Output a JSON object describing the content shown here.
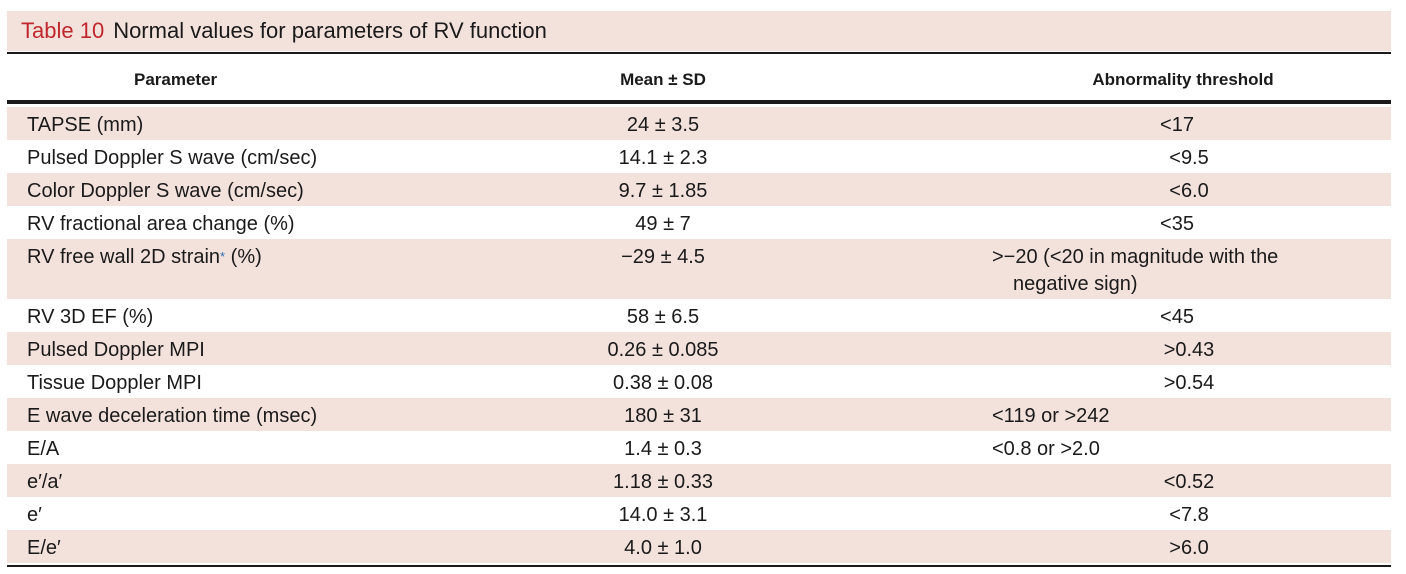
{
  "table": {
    "label": "Table 10",
    "title": "Normal values for parameters of RV function",
    "headers": {
      "parameter": "Parameter",
      "mean": "Mean ± SD",
      "threshold": "Abnormality threshold"
    },
    "rows": [
      {
        "parameter": "TAPSE (mm)",
        "mean": "24 ± 3.5",
        "threshold": "<17"
      },
      {
        "parameter": "Pulsed Doppler S wave (cm/sec)",
        "mean": "14.1 ± 2.3",
        "threshold": "<9.5"
      },
      {
        "parameter": "Color Doppler S wave (cm/sec)",
        "mean": "9.7 ± 1.85",
        "threshold": "<6.0"
      },
      {
        "parameter": "RV fractional area change (%)",
        "mean": "49 ± 7",
        "threshold": "<35"
      },
      {
        "parameter": "RV free wall 2D strain",
        "marker": "*",
        "parameter_suffix": " (%)",
        "mean": "−29 ± 4.5",
        "threshold": ">−20 (<20 in magnitude with the",
        "threshold_cont": "negative sign)"
      },
      {
        "parameter": "RV 3D EF (%)",
        "mean": "58 ± 6.5",
        "threshold": "<45"
      },
      {
        "parameter": "Pulsed Doppler MPI",
        "mean": "0.26 ± 0.085",
        "threshold": ">0.43"
      },
      {
        "parameter": "Tissue Doppler MPI",
        "mean": "0.38 ± 0.08",
        "threshold": ">0.54"
      },
      {
        "parameter": "E wave deceleration time (msec)",
        "mean": "180 ± 31",
        "threshold": "<119 or >242"
      },
      {
        "parameter": "E/A",
        "mean": "1.4 ± 0.3",
        "threshold": "<0.8 or >2.0"
      },
      {
        "parameter": "e′/a′",
        "mean": "1.18 ± 0.33",
        "threshold": "<0.52"
      },
      {
        "parameter": "e′",
        "mean": "14.0 ± 3.1",
        "threshold": "<7.8"
      },
      {
        "parameter": "E/e′",
        "mean": "4.0 ± 1.0",
        "threshold": ">6.0"
      }
    ]
  },
  "colors": {
    "label_red": "#c0272d",
    "row_shade": "#f3e2dc",
    "marker_blue": "#2f6fb3"
  }
}
